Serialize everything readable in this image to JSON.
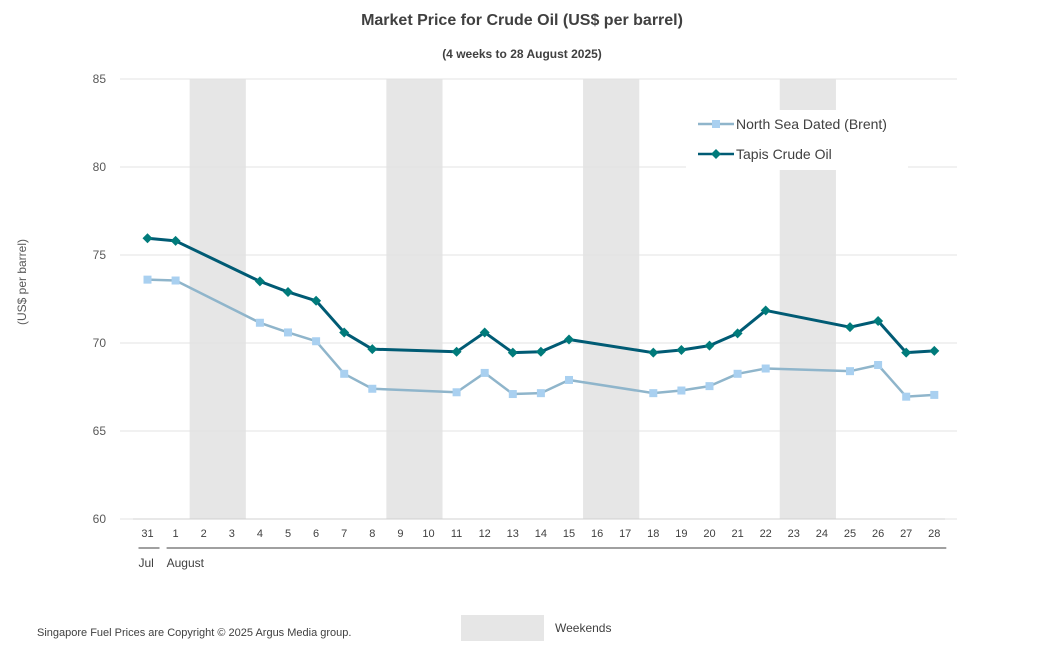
{
  "chart_data": {
    "type": "line",
    "title": "Market Price for Crude Oil (US$ per barrel)",
    "subtitle": "(4 weeks to 28 August 2025)",
    "ylabel": "(US$ per barrel)",
    "ylim": [
      60,
      85
    ],
    "yticks": [
      60,
      65,
      70,
      75,
      80,
      85
    ],
    "grid": true,
    "legend_position": "top-right",
    "categories": [
      "31",
      "1",
      "2",
      "3",
      "4",
      "5",
      "6",
      "7",
      "8",
      "9",
      "10",
      "11",
      "12",
      "13",
      "14",
      "15",
      "16",
      "17",
      "18",
      "19",
      "20",
      "21",
      "22",
      "23",
      "24",
      "25",
      "26",
      "27",
      "28"
    ],
    "month_labels": [
      {
        "label": "Jul",
        "start": "31",
        "end": "31"
      },
      {
        "label": "August",
        "start": "1",
        "end": "28"
      }
    ],
    "weekends": [
      [
        "2",
        "3"
      ],
      [
        "9",
        "10"
      ],
      [
        "16",
        "17"
      ],
      [
        "23",
        "24"
      ]
    ],
    "weekend_legend": "Weekends",
    "series": [
      {
        "name": "North Sea Dated (Brent)",
        "color": "#8fb5cb",
        "marker": "square",
        "marker_color": "#a9d0f0",
        "values": {
          "31": 73.6,
          "1": 73.55,
          "4": 71.15,
          "5": 70.6,
          "6": 70.1,
          "7": 68.25,
          "8": 67.4,
          "11": 67.2,
          "12": 68.3,
          "13": 67.1,
          "14": 67.15,
          "15": 67.9,
          "18": 67.15,
          "19": 67.3,
          "20": 67.55,
          "21": 68.25,
          "22": 68.55,
          "25": 68.4,
          "26": 68.75,
          "27": 66.95,
          "28": 67.05
        }
      },
      {
        "name": "Tapis Crude Oil",
        "color": "#005b74",
        "marker": "diamond",
        "marker_color": "#007b7b",
        "values": {
          "31": 75.95,
          "1": 75.8,
          "4": 73.5,
          "5": 72.9,
          "6": 72.4,
          "7": 70.6,
          "8": 69.65,
          "11": 69.5,
          "12": 70.6,
          "13": 69.45,
          "14": 69.5,
          "15": 70.2,
          "18": 69.45,
          "19": 69.6,
          "20": 69.85,
          "21": 70.55,
          "22": 71.85,
          "25": 70.9,
          "26": 71.25,
          "27": 69.45,
          "28": 69.55
        }
      }
    ]
  },
  "footer": {
    "copyright": "Singapore Fuel Prices are Copyright © 2025 Argus Media group."
  },
  "colors": {
    "weekend_band": "#e6e6e6",
    "gridline": "#e3e3e3",
    "text": "#404040"
  }
}
